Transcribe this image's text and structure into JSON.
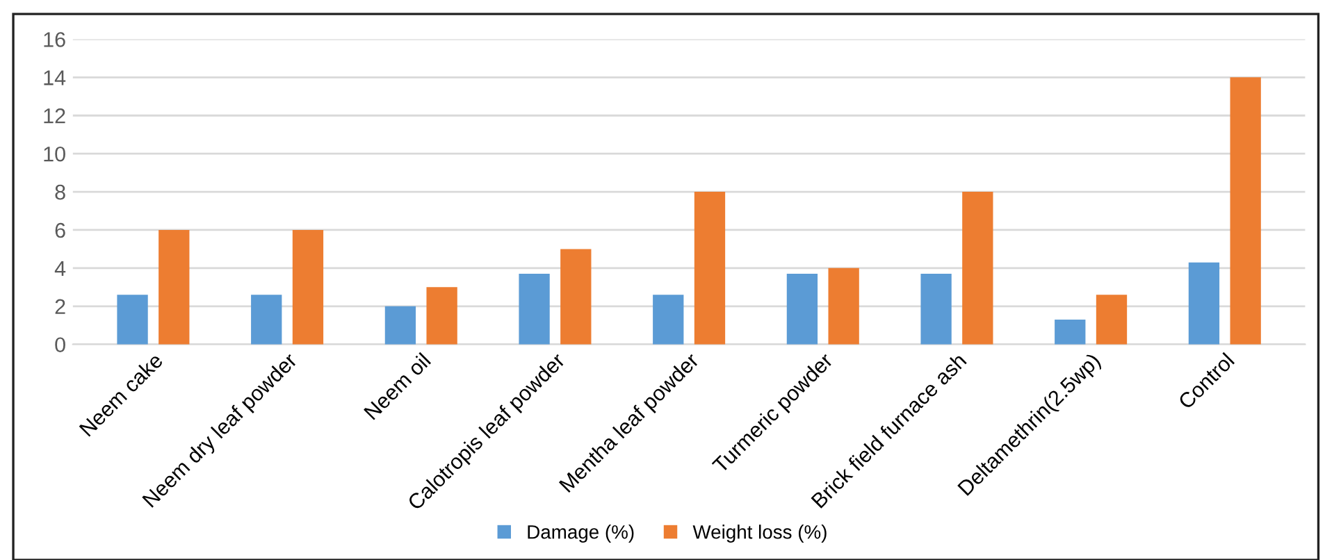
{
  "chart_data": {
    "type": "bar",
    "categories": [
      "Neem cake",
      "Neem dry leaf powder",
      "Neem oil",
      "Calotropis leaf powder",
      "Mentha leaf powder",
      "Turmeric powder",
      "Brick field furnace ash",
      "Deltamethrin(2.5wp)",
      "Control"
    ],
    "series": [
      {
        "name": "Damage (%)",
        "color": "#5b9bd5",
        "values": [
          2.6,
          2.6,
          2.0,
          3.7,
          2.6,
          3.7,
          3.7,
          1.3,
          4.3
        ]
      },
      {
        "name": "Weight loss (%)",
        "color": "#ed7d31",
        "values": [
          6,
          6,
          3,
          5,
          8,
          4,
          8,
          2.6,
          14
        ]
      }
    ],
    "ylim": [
      0,
      16
    ],
    "yticks": [
      0,
      2,
      4,
      6,
      8,
      10,
      12,
      14,
      16
    ],
    "grid": "y",
    "legend": "bottom"
  }
}
